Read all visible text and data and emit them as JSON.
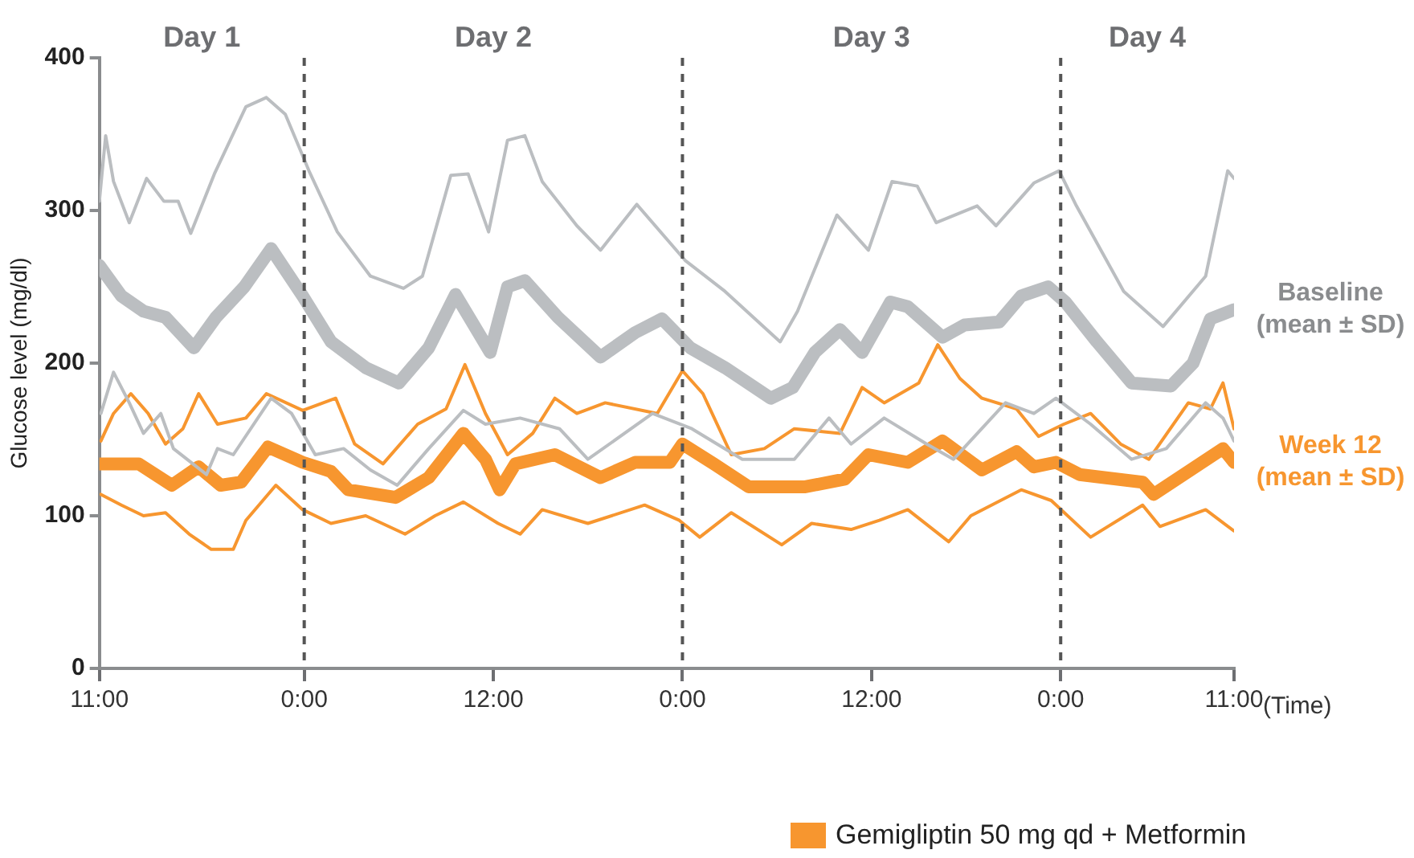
{
  "chart_data": {
    "type": "line",
    "ylabel": "Glucose level (mg/dl)",
    "xlabel": "(Time)",
    "xlim": [
      "--01-01T11:00",
      "--01-04T11:00"
    ],
    "xticks": [
      {
        "value": "--01-01T11:00",
        "label": "11:00"
      },
      {
        "value": "--01-02T00:00",
        "label": "0:00"
      },
      {
        "value": "--01-02T12:00",
        "label": "12:00"
      },
      {
        "value": "--01-03T00:00",
        "label": "0:00"
      },
      {
        "value": "--01-03T12:00",
        "label": "12:00"
      },
      {
        "value": "--01-04T00:00",
        "label": "0:00"
      },
      {
        "value": "--01-04T11:00",
        "label": "11:00"
      }
    ],
    "ylim": [
      0,
      400
    ],
    "yticks": [
      0,
      100,
      200,
      300,
      400
    ],
    "grid": false,
    "legend": false,
    "marker": "none",
    "ref_lines": [
      {
        "axis": "x",
        "value": "--01-02T00:00",
        "color": "#555555",
        "line_style": "dashed"
      },
      {
        "axis": "x",
        "value": "--01-03T00:00",
        "color": "#555555",
        "line_style": "dashed"
      },
      {
        "axis": "x",
        "value": "--01-04T00:00",
        "color": "#555555",
        "line_style": "dashed"
      }
    ],
    "annotations": [
      "Day 1",
      "Day 2",
      "Day 3",
      "Day 4",
      "Gemigliptin 50 mg qd + Metformin"
    ],
    "series": [
      {
        "color": "#bbbec1",
        "x": [
          "--01-01T11:00",
          "--01-01T11:24",
          "--01-01T11:54",
          "--01-01T12:54",
          "--01-01T14:00",
          "--01-01T15:06",
          "--01-01T16:00",
          "--01-01T16:48",
          "--01-01T18:18",
          "--01-01T20:18",
          "--01-01T21:36",
          "--01-01T22:48",
          "--01-02T00:18",
          "--01-02T02:06",
          "--01-02T04:12",
          "--01-02T06:18",
          "--01-02T07:30",
          "--01-02T09:18",
          "--01-02T10:24",
          "--01-02T11:42",
          "--01-02T12:54",
          "--01-02T14:00",
          "--01-02T15:06",
          "--01-02T17:18",
          "--01-02T18:48",
          "--01-02T21:06",
          "--01-03T00:12",
          "--01-03T02:42",
          "--01-03T06:12",
          "--01-03T07:18",
          "--01-03T09:48",
          "--01-03T11:48",
          "--01-03T13:18",
          "--01-03T14:54",
          "--01-03T16:06",
          "--01-03T18:42",
          "--01-03T19:54",
          "--01-03T22:18",
          "--01-03T23:54",
          "--01-04T01:00",
          "--01-04T04:00",
          "--01-04T06:30",
          "--01-04T09:12",
          "--01-04T10:36",
          "--01-04T11:00"
        ],
        "values": [
          306,
          349,
          319,
          292,
          321,
          306,
          306,
          285,
          324,
          368,
          374,
          363,
          326,
          286,
          257,
          249,
          257,
          323,
          324,
          286,
          346,
          349,
          319,
          290,
          274,
          304,
          267,
          247,
          214,
          234,
          297,
          274,
          319,
          316,
          292,
          303,
          290,
          318,
          326,
          303,
          247,
          224,
          257,
          326,
          321
        ]
      },
      {
        "color": "#bbbec1",
        "x": [
          "--01-01T11:06",
          "--01-01T11:54",
          "--01-01T12:54",
          "--01-01T13:48",
          "--01-01T14:54",
          "--01-01T15:42",
          "--01-01T17:48",
          "--01-01T18:30",
          "--01-01T19:30",
          "--01-01T21:54",
          "--01-01T23:12",
          "--01-02T00:42",
          "--01-02T02:30",
          "--01-02T04:12",
          "--01-02T05:54",
          "--01-02T07:54",
          "--01-02T10:06",
          "--01-02T11:30",
          "--01-02T13:42",
          "--01-02T16:12",
          "--01-02T18:00",
          "--01-02T22:06",
          "--01-03T00:36",
          "--01-03T03:48",
          "--01-03T07:06",
          "--01-03T09:18",
          "--01-03T10:42",
          "--01-03T12:48",
          "--01-03T15:30",
          "--01-03T17:12",
          "--01-03T20:30",
          "--01-03T22:18",
          "--01-03T23:42",
          "--01-04T01:54",
          "--01-04T04:30",
          "--01-04T06:42",
          "--01-04T09:12",
          "--01-04T10:18",
          "--01-04T11:00"
        ],
        "values": [
          167,
          194,
          174,
          154,
          167,
          144,
          127,
          144,
          140,
          177,
          167,
          140,
          144,
          130,
          120,
          144,
          169,
          160,
          164,
          157,
          137,
          167,
          157,
          137,
          137,
          164,
          147,
          164,
          147,
          137,
          174,
          167,
          177,
          160,
          137,
          144,
          174,
          164,
          149
        ]
      },
      {
        "color": "#f7962f",
        "x": [
          "--01-01T11:06",
          "--01-01T11:54",
          "--01-01T13:00",
          "--01-01T14:06",
          "--01-01T15:12",
          "--01-01T16:18",
          "--01-01T17:18",
          "--01-01T18:30",
          "--01-01T20:18",
          "--01-01T21:36",
          "--01-01T23:54",
          "--01-02T02:00",
          "--01-02T03:12",
          "--01-02T05:00",
          "--01-02T07:12",
          "--01-02T09:00",
          "--01-02T10:12",
          "--01-02T11:30",
          "--01-02T12:54",
          "--01-02T14:30",
          "--01-02T15:54",
          "--01-02T17:18",
          "--01-02T19:06",
          "--01-02T22:24",
          "--01-03T00:00",
          "--01-03T01:18",
          "--01-03T03:06",
          "--01-03T05:12",
          "--01-03T07:06",
          "--01-03T10:00",
          "--01-03T11:24",
          "--01-03T12:48",
          "--01-03T15:00",
          "--01-03T16:12",
          "--01-03T17:36",
          "--01-03T19:00",
          "--01-03T21:12",
          "--01-03T22:36",
          "--01-04T00:12",
          "--01-04T01:54",
          "--01-04T03:48",
          "--01-04T05:36",
          "--01-04T08:06",
          "--01-04T09:30",
          "--01-04T10:18",
          "--01-04T11:00"
        ],
        "values": [
          149,
          167,
          180,
          167,
          147,
          157,
          180,
          160,
          164,
          180,
          169,
          177,
          147,
          134,
          160,
          170,
          199,
          167,
          140,
          154,
          177,
          167,
          174,
          167,
          195,
          180,
          140,
          144,
          157,
          154,
          184,
          174,
          187,
          212,
          190,
          177,
          170,
          152,
          160,
          167,
          147,
          137,
          174,
          170,
          187,
          157
        ]
      },
      {
        "color": "#f7962f",
        "x": [
          "--01-01T11:06",
          "--01-01T12:24",
          "--01-01T13:48",
          "--01-01T15:12",
          "--01-01T16:42",
          "--01-01T18:06",
          "--01-01T19:30",
          "--01-01T20:18",
          "--01-01T22:12",
          "--01-01T23:54",
          "--01-02T01:42",
          "--01-02T03:54",
          "--01-02T06:24",
          "--01-02T08:18",
          "--01-02T10:06",
          "--01-02T12:18",
          "--01-02T13:42",
          "--01-02T15:06",
          "--01-02T18:00",
          "--01-02T21:36",
          "--01-02T23:48",
          "--01-03T01:06",
          "--01-03T03:06",
          "--01-03T06:18",
          "--01-03T08:12",
          "--01-03T10:42",
          "--01-03T12:30",
          "--01-03T14:18",
          "--01-03T16:54",
          "--01-03T18:18",
          "--01-03T21:30",
          "--01-03T23:24",
          "--01-04T01:54",
          "--01-04T05:12",
          "--01-04T06:18",
          "--01-04T09:12",
          "--01-04T11:00"
        ],
        "values": [
          114,
          107,
          100,
          102,
          88,
          78,
          78,
          97,
          120,
          104,
          95,
          100,
          88,
          100,
          109,
          95,
          88,
          104,
          95,
          107,
          97,
          86,
          102,
          81,
          95,
          91,
          97,
          104,
          83,
          100,
          117,
          110,
          86,
          107,
          93,
          104,
          90
        ]
      },
      {
        "name": "Baseline (mean ± SD)",
        "color": "#bbbec1",
        "x": [
          "--01-01T11:00",
          "--01-01T12:24",
          "--01-01T13:48",
          "--01-01T15:12",
          "--01-01T17:00",
          "--01-01T18:24",
          "--01-01T20:12",
          "--01-01T21:54",
          "--01-01T23:54",
          "--01-02T01:42",
          "--01-02T03:54",
          "--01-02T06:00",
          "--01-02T07:54",
          "--01-02T09:36",
          "--01-02T11:48",
          "--01-02T12:54",
          "--01-02T14:00",
          "--01-02T16:06",
          "--01-02T18:48",
          "--01-02T21:00",
          "--01-02T22:42",
          "--01-03T00:30",
          "--01-03T02:42",
          "--01-03T05:36",
          "--01-03T07:00",
          "--01-03T08:24",
          "--01-03T10:00",
          "--01-03T11:24",
          "--01-03T13:12",
          "--01-03T14:18",
          "--01-03T16:30",
          "--01-03T17:54",
          "--01-03T20:06",
          "--01-03T21:30",
          "--01-03T23:12",
          "--01-04T00:18",
          "--01-04T02:18",
          "--01-04T04:30",
          "--01-04T07:00",
          "--01-04T08:24",
          "--01-04T09:30",
          "--01-04T11:00"
        ],
        "values": [
          264,
          244,
          234,
          230,
          210,
          230,
          250,
          275,
          244,
          214,
          197,
          187,
          210,
          245,
          207,
          250,
          254,
          230,
          204,
          220,
          229,
          210,
          197,
          177,
          184,
          207,
          222,
          207,
          240,
          237,
          217,
          225,
          227,
          244,
          250,
          240,
          214,
          187,
          185,
          200,
          229,
          235
        ]
      },
      {
        "name": "Week 12 (mean ± SD)",
        "color": "#f7962f",
        "x": [
          "--01-01T11:00",
          "--01-01T13:30",
          "--01-01T15:36",
          "--01-01T17:18",
          "--01-01T18:42",
          "--01-01T20:00",
          "--01-01T21:42",
          "--01-01T23:54",
          "--01-02T01:42",
          "--01-02T02:48",
          "--01-02T05:48",
          "--01-02T07:54",
          "--01-02T10:06",
          "--01-02T11:30",
          "--01-02T12:24",
          "--01-02T13:24",
          "--01-02T15:54",
          "--01-02T18:48",
          "--01-02T21:00",
          "--01-02T23:12",
          "--01-03T00:00",
          "--01-03T02:00",
          "--01-03T04:12",
          "--01-03T07:48",
          "--01-03T10:18",
          "--01-03T11:48",
          "--01-03T14:18",
          "--01-03T16:30",
          "--01-03T19:00",
          "--01-03T21:12",
          "--01-03T22:18",
          "--01-03T23:42",
          "--01-04T01:12",
          "--01-04T05:12",
          "--01-04T05:54",
          "--01-04T10:18",
          "--01-04T11:00"
        ],
        "values": [
          134,
          134,
          120,
          132,
          120,
          122,
          145,
          135,
          129,
          117,
          112,
          125,
          154,
          137,
          117,
          134,
          140,
          125,
          135,
          135,
          147,
          134,
          119,
          119,
          124,
          140,
          135,
          149,
          130,
          142,
          132,
          135,
          127,
          122,
          114,
          144,
          135
        ]
      }
    ]
  }
}
